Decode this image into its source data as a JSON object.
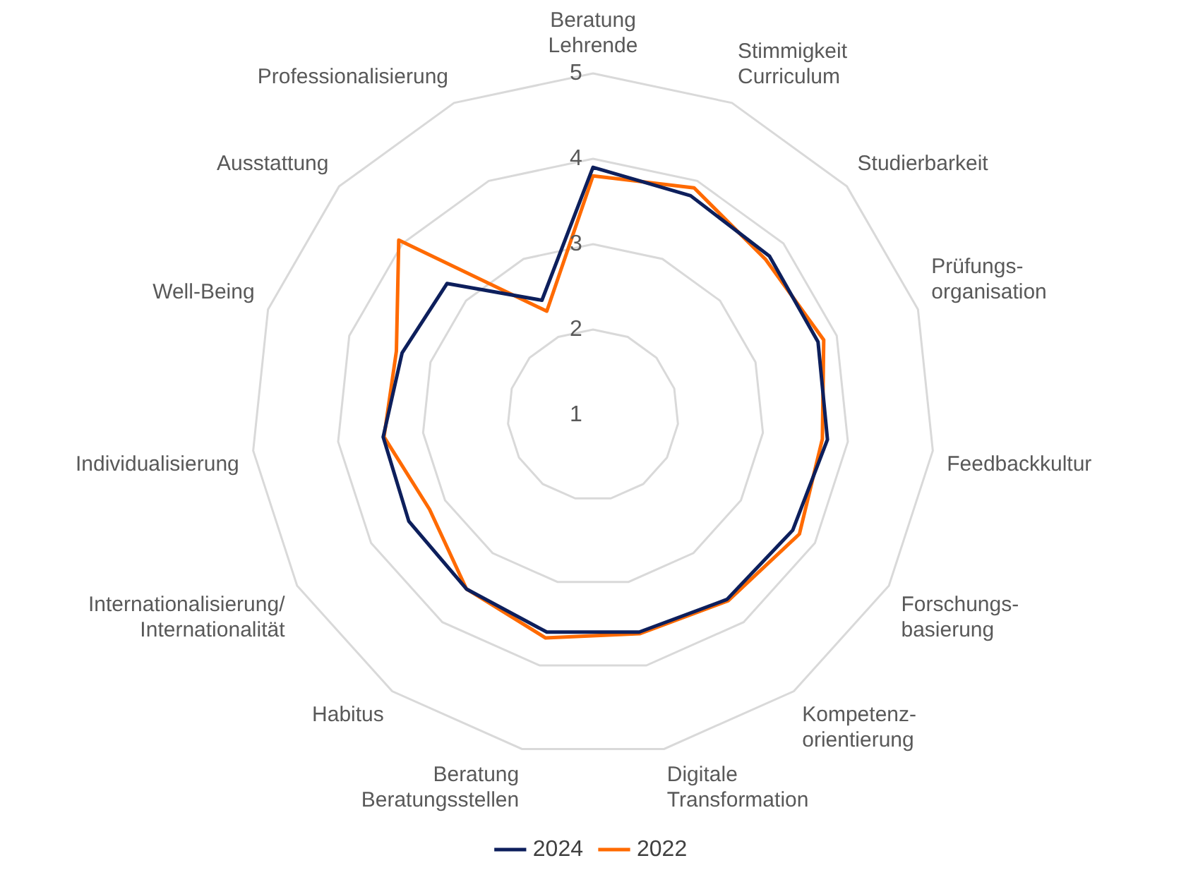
{
  "chart_data": {
    "type": "radar",
    "categories": [
      "Beratung\nLehrende",
      "Stimmigkeit\nCurriculum",
      "Studierbarkeit",
      "Prüfungs-\norganisation",
      "Feedbackkultur",
      "Forschungs-\nbasierung",
      "Kompetenz-\norientierung",
      "Digitale\nTransformation",
      "Beratung\nBeratungsstellen",
      "Habitus",
      "Internationalisierung/\nInternationalität",
      "Individualisierung",
      "Well-Being",
      "Ausstattung",
      "Professionalisierung"
    ],
    "series": [
      {
        "name": "2024",
        "color": "#0d1f5c",
        "values": [
          3.9,
          3.81,
          3.78,
          3.77,
          3.76,
          3.7,
          3.67,
          3.6,
          3.6,
          3.52,
          3.49,
          3.47,
          3.35,
          3.3,
          2.47
        ]
      },
      {
        "name": "2022",
        "color": "#ff6a00",
        "values": [
          3.8,
          3.91,
          3.72,
          3.84,
          3.7,
          3.79,
          3.69,
          3.62,
          3.67,
          3.52,
          3.21,
          3.46,
          3.42,
          4.06,
          2.33
        ]
      }
    ],
    "ylim": [
      1,
      5
    ],
    "yticks": [
      1,
      2,
      3,
      4,
      5
    ],
    "grid": true,
    "legend": "bottom",
    "marker": "none",
    "line_style": "solid"
  }
}
